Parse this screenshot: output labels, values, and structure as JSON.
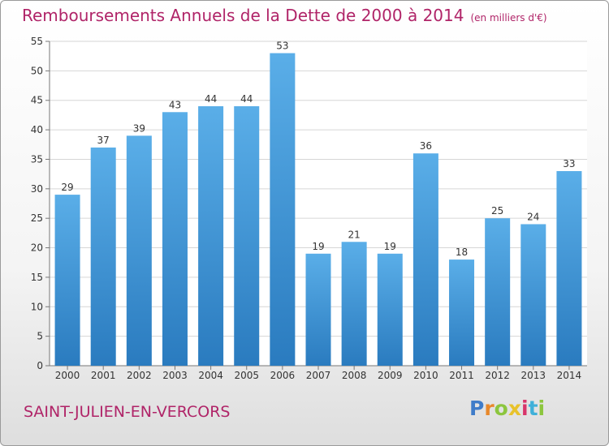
{
  "chart_data": {
    "type": "bar",
    "title": "Remboursements Annuels de la Dette de 2000 à 2014",
    "unit_note": "(en milliers d'€)",
    "categories": [
      "2000",
      "2001",
      "2002",
      "2003",
      "2004",
      "2005",
      "2006",
      "2007",
      "2008",
      "2009",
      "2010",
      "2011",
      "2012",
      "2013",
      "2014"
    ],
    "values": [
      29,
      37,
      39,
      43,
      44,
      44,
      53,
      19,
      21,
      19,
      36,
      18,
      25,
      24,
      33
    ],
    "ylim": [
      0,
      55
    ],
    "yticks": [
      0,
      5,
      10,
      15,
      20,
      25,
      30,
      35,
      40,
      45,
      50,
      55
    ],
    "grid": true,
    "legend": "none",
    "bar_color_top": "#5aaee8",
    "bar_color_bottom": "#2a7bbf"
  },
  "commune_name": "SAINT-JULIEN-EN-VERCORS",
  "logo": {
    "letters": [
      "P",
      "r",
      "o",
      "x",
      "i",
      "t",
      "i"
    ],
    "colors": [
      "#3f7cc9",
      "#e8882a",
      "#8cc63e",
      "#e8c22a",
      "#d8356a",
      "#3fb0d9",
      "#8cc63e"
    ]
  }
}
